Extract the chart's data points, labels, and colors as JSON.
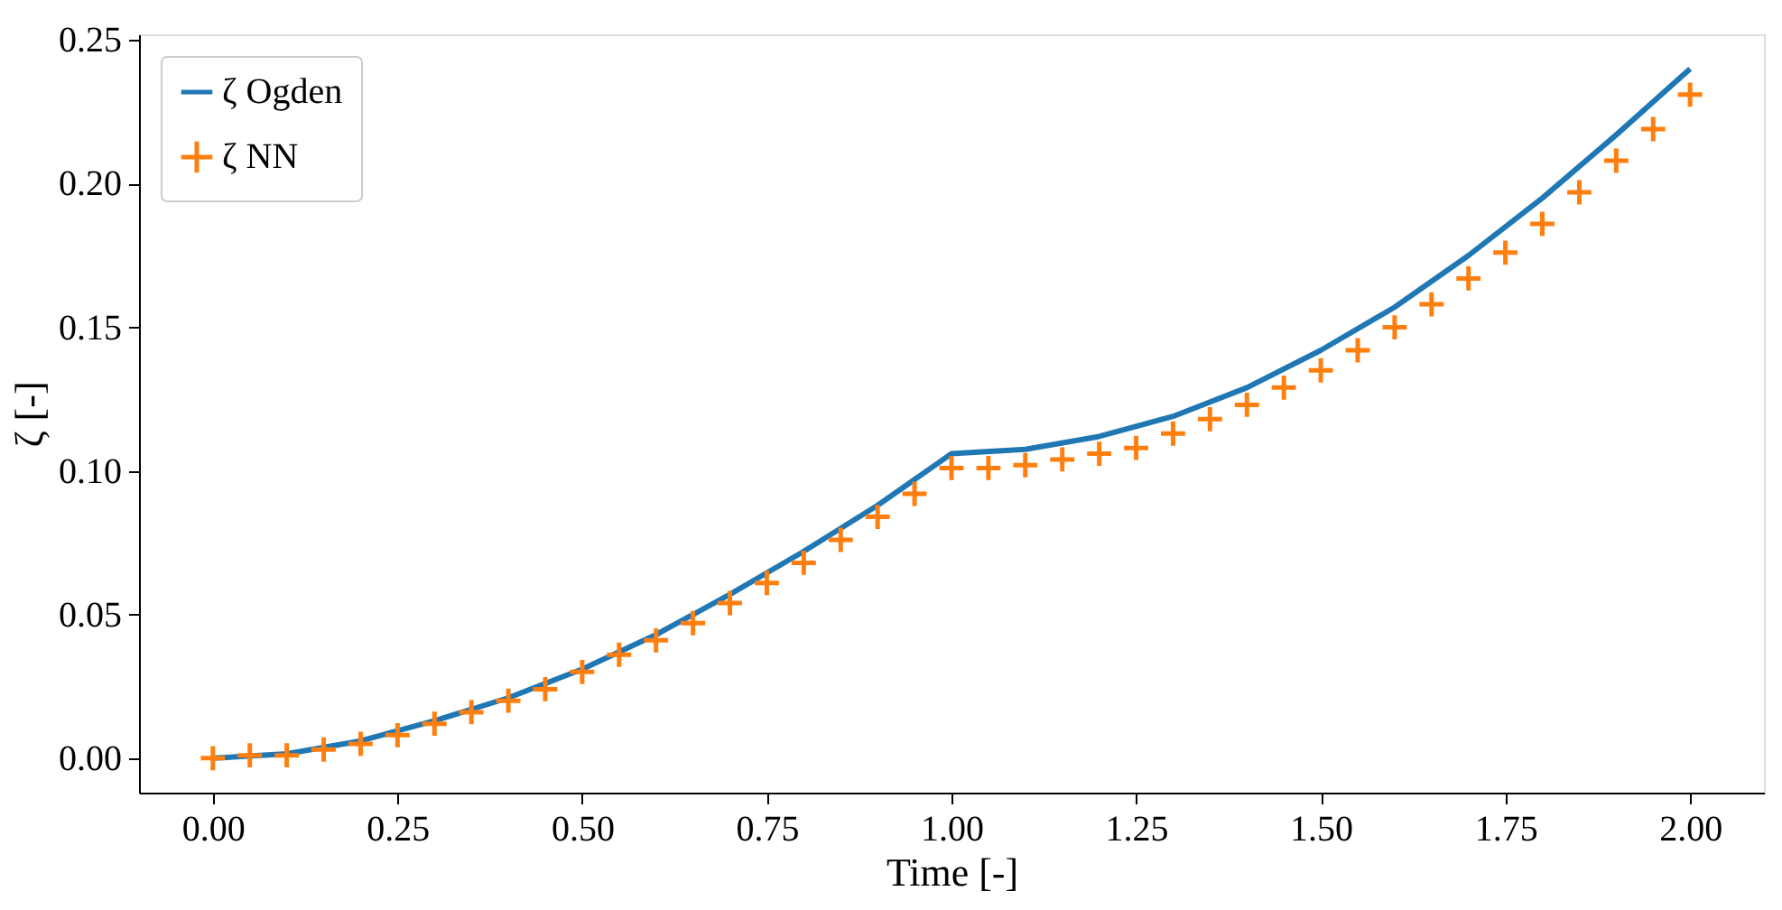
{
  "chart_data": {
    "type": "line",
    "xlabel": "Time [-]",
    "ylabel": "ζ [-]",
    "xlim": [
      -0.1,
      2.1
    ],
    "ylim": [
      -0.012,
      0.252
    ],
    "xticks": [
      {
        "value": 0,
        "label": "0.00"
      },
      {
        "value": 0.25,
        "label": "0.25"
      },
      {
        "value": 0.5,
        "label": "0.50"
      },
      {
        "value": 0.75,
        "label": "0.75"
      },
      {
        "value": 1,
        "label": "1.00"
      },
      {
        "value": 1.25,
        "label": "1.25"
      },
      {
        "value": 1.5,
        "label": "1.50"
      },
      {
        "value": 1.75,
        "label": "1.75"
      },
      {
        "value": 2,
        "label": "2.00"
      }
    ],
    "yticks": [
      {
        "value": 0,
        "label": "0.00"
      },
      {
        "value": 0.05,
        "label": "0.05"
      },
      {
        "value": 0.1,
        "label": "0.10"
      },
      {
        "value": 0.15,
        "label": "0.15"
      },
      {
        "value": 0.2,
        "label": "0.20"
      },
      {
        "value": 0.25,
        "label": "0.25"
      }
    ],
    "grid": false,
    "legend": "top left",
    "series": [
      {
        "name": "ζ Ogden",
        "color": "#1f77b4",
        "marker": "none",
        "line_style": "solid",
        "x": [
          0,
          0.1,
          0.2,
          0.3,
          0.4,
          0.5,
          0.6,
          0.7,
          0.8,
          0.9,
          1.0,
          1.1,
          1.2,
          1.3,
          1.4,
          1.5,
          1.6,
          1.7,
          1.8,
          1.9,
          2.0
        ],
        "values": [
          0,
          0.0015,
          0.006,
          0.013,
          0.021,
          0.031,
          0.043,
          0.057,
          0.072,
          0.088,
          0.106,
          0.1075,
          0.112,
          0.119,
          0.129,
          0.142,
          0.157,
          0.175,
          0.195,
          0.217,
          0.24
        ]
      },
      {
        "name": "ζ NN",
        "type": "scatter",
        "color": "#ff7f0e",
        "marker": "cross",
        "x": [
          0,
          0.05,
          0.1,
          0.15,
          0.2,
          0.25,
          0.3,
          0.35,
          0.4,
          0.45,
          0.5,
          0.55,
          0.6,
          0.65,
          0.7,
          0.75,
          0.8,
          0.85,
          0.9,
          0.95,
          1.0,
          1.05,
          1.1,
          1.15,
          1.2,
          1.25,
          1.3,
          1.35,
          1.4,
          1.45,
          1.5,
          1.55,
          1.6,
          1.65,
          1.7,
          1.75,
          1.8,
          1.85,
          1.9,
          1.95,
          2.0
        ],
        "values": [
          0,
          0.001,
          0.001,
          0.003,
          0.005,
          0.008,
          0.012,
          0.016,
          0.02,
          0.024,
          0.03,
          0.036,
          0.041,
          0.047,
          0.054,
          0.061,
          0.068,
          0.076,
          0.084,
          0.092,
          0.101,
          0.101,
          0.102,
          0.104,
          0.106,
          0.108,
          0.113,
          0.118,
          0.123,
          0.129,
          0.135,
          0.142,
          0.15,
          0.158,
          0.167,
          0.176,
          0.186,
          0.197,
          0.208,
          0.219,
          0.231
        ]
      }
    ]
  }
}
